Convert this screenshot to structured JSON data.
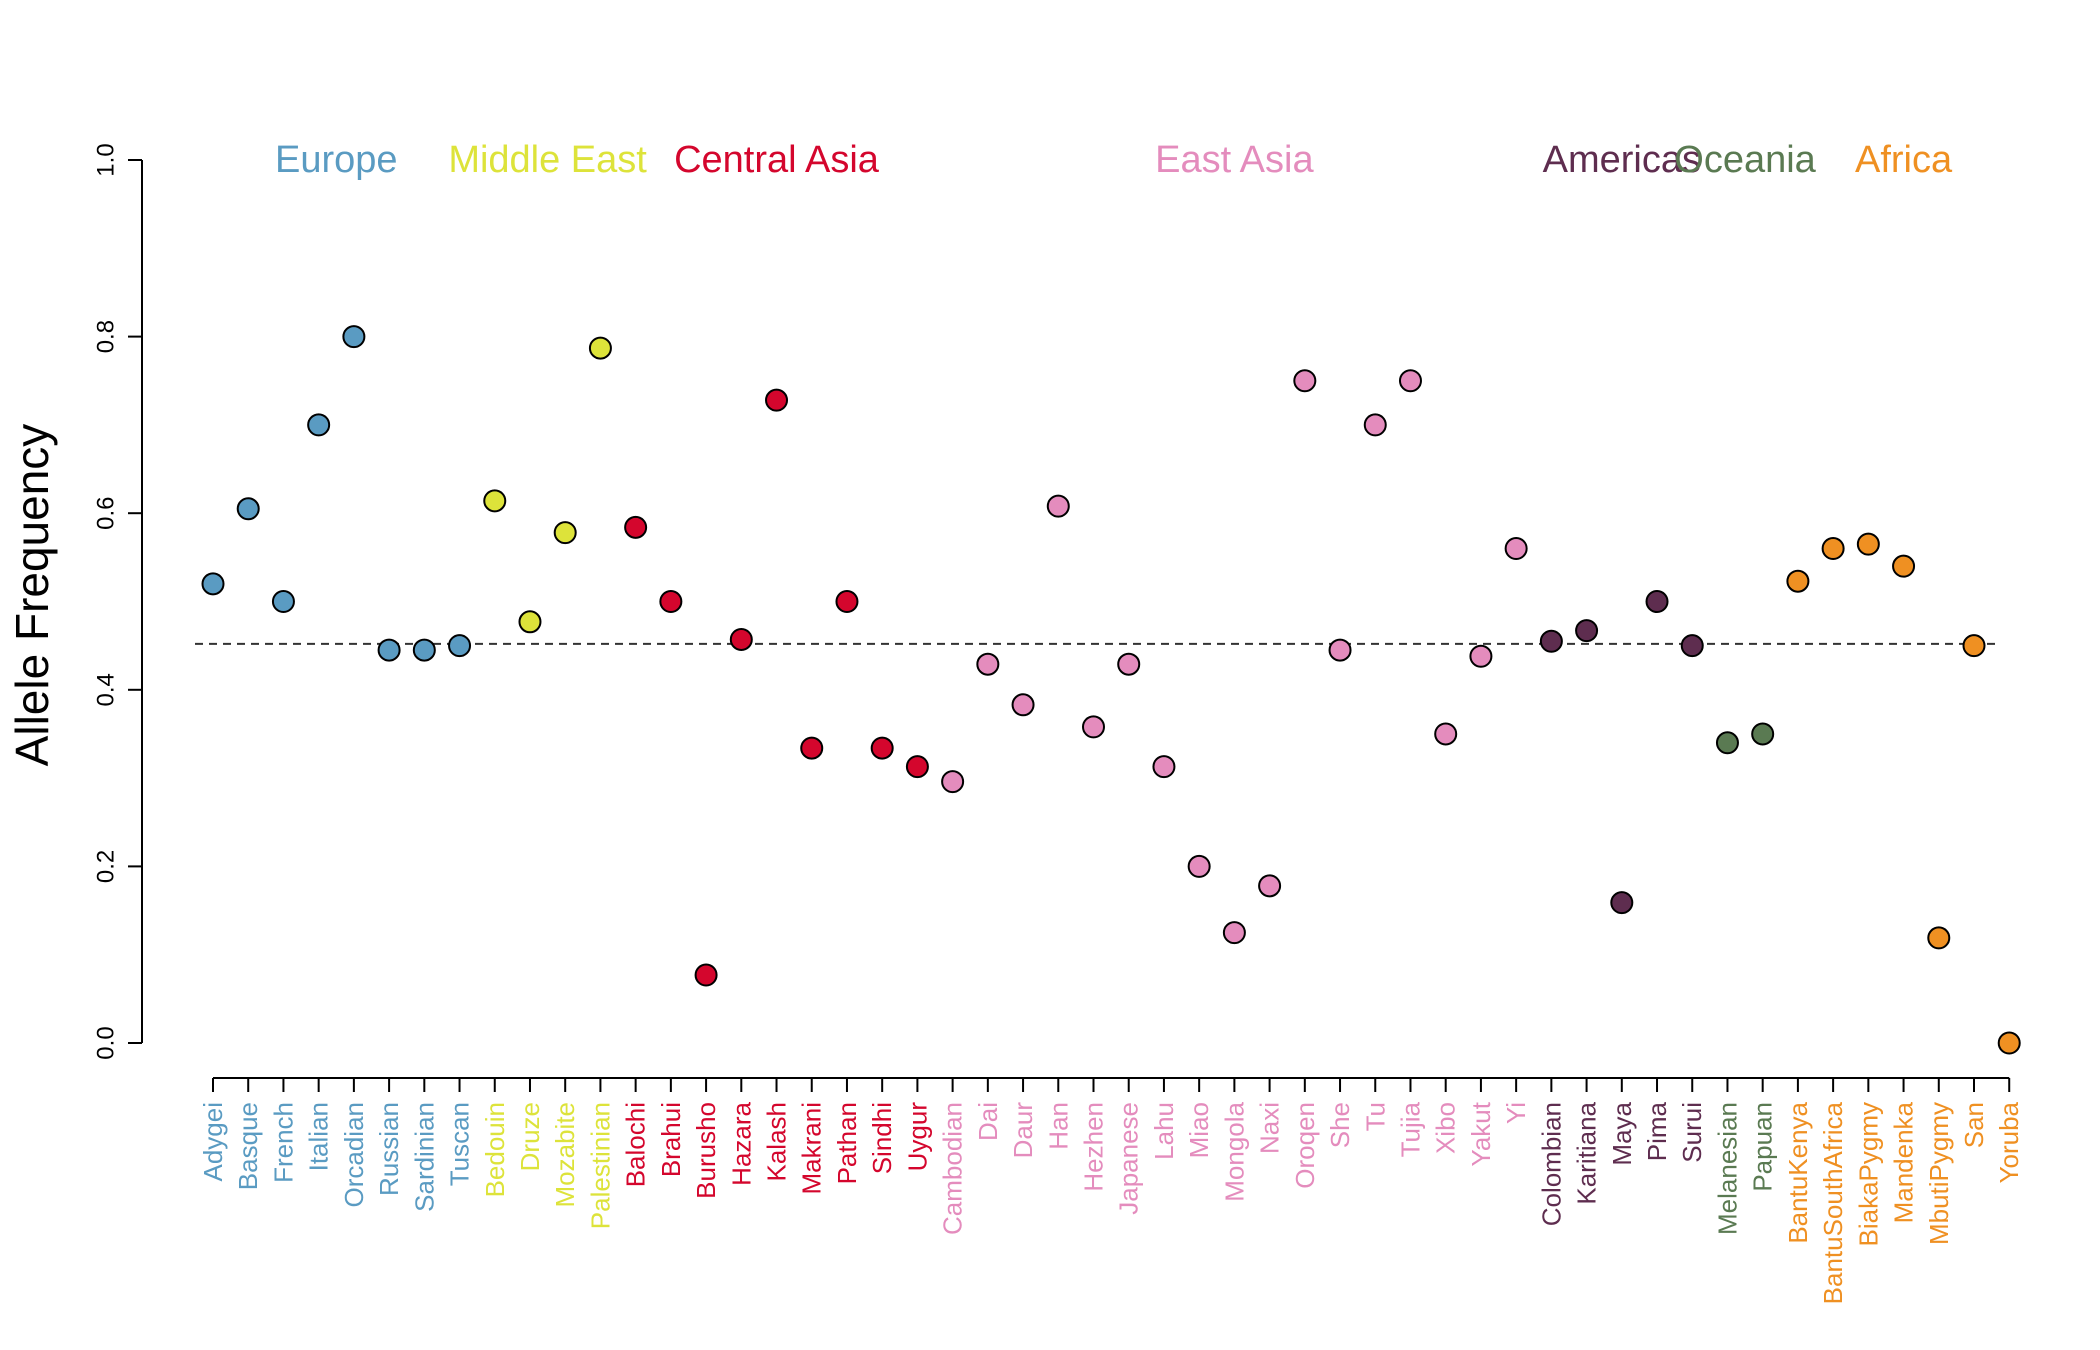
{
  "chart_data": {
    "type": "scatter",
    "title": "",
    "xlabel": "",
    "ylabel": "Allele Frequency",
    "ylim": [
      0,
      1
    ],
    "yticks": [
      "0.0",
      "0.2",
      "0.4",
      "0.6",
      "0.8",
      "1.0"
    ],
    "reference_line": {
      "y": 0.452,
      "style": "dashed"
    },
    "grid": false,
    "regions": [
      {
        "name": "Europe",
        "color": "#5a9bc2"
      },
      {
        "name": "Middle East",
        "color": "#dde33a"
      },
      {
        "name": "Central Asia",
        "color": "#d4062d"
      },
      {
        "name": "East Asia",
        "color": "#e48cbd"
      },
      {
        "name": "Americas",
        "color": "#5e2d4f"
      },
      {
        "name": "Oceania",
        "color": "#5a7a52"
      },
      {
        "name": "Africa",
        "color": "#ef9022"
      }
    ],
    "points": [
      {
        "label": "Adygei",
        "region": 0,
        "y": 0.52
      },
      {
        "label": "Basque",
        "region": 0,
        "y": 0.605
      },
      {
        "label": "French",
        "region": 0,
        "y": 0.5
      },
      {
        "label": "Italian",
        "region": 0,
        "y": 0.7
      },
      {
        "label": "Orcadian",
        "region": 0,
        "y": 0.8
      },
      {
        "label": "Russian",
        "region": 0,
        "y": 0.445
      },
      {
        "label": "Sardinian",
        "region": 0,
        "y": 0.445
      },
      {
        "label": "Tuscan",
        "region": 0,
        "y": 0.45
      },
      {
        "label": "Bedouin",
        "region": 1,
        "y": 0.614
      },
      {
        "label": "Druze",
        "region": 1,
        "y": 0.477
      },
      {
        "label": "Mozabite",
        "region": 1,
        "y": 0.578
      },
      {
        "label": "Palestinian",
        "region": 1,
        "y": 0.787
      },
      {
        "label": "Balochi",
        "region": 2,
        "y": 0.584
      },
      {
        "label": "Brahui",
        "region": 2,
        "y": 0.5
      },
      {
        "label": "Burusho",
        "region": 2,
        "y": 0.077
      },
      {
        "label": "Hazara",
        "region": 2,
        "y": 0.457
      },
      {
        "label": "Kalash",
        "region": 2,
        "y": 0.728
      },
      {
        "label": "Makrani",
        "region": 2,
        "y": 0.334
      },
      {
        "label": "Pathan",
        "region": 2,
        "y": 0.5
      },
      {
        "label": "Sindhi",
        "region": 2,
        "y": 0.334
      },
      {
        "label": "Uygur",
        "region": 2,
        "y": 0.313
      },
      {
        "label": "Cambodian",
        "region": 3,
        "y": 0.296
      },
      {
        "label": "Dai",
        "region": 3,
        "y": 0.429
      },
      {
        "label": "Daur",
        "region": 3,
        "y": 0.383
      },
      {
        "label": "Han",
        "region": 3,
        "y": 0.608
      },
      {
        "label": "Hezhen",
        "region": 3,
        "y": 0.358
      },
      {
        "label": "Japanese",
        "region": 3,
        "y": 0.429
      },
      {
        "label": "Lahu",
        "region": 3,
        "y": 0.313
      },
      {
        "label": "Miao",
        "region": 3,
        "y": 0.2
      },
      {
        "label": "Mongola",
        "region": 3,
        "y": 0.125
      },
      {
        "label": "Naxi",
        "region": 3,
        "y": 0.178
      },
      {
        "label": "Oroqen",
        "region": 3,
        "y": 0.75
      },
      {
        "label": "She",
        "region": 3,
        "y": 0.445
      },
      {
        "label": "Tu",
        "region": 3,
        "y": 0.7
      },
      {
        "label": "Tujia",
        "region": 3,
        "y": 0.75
      },
      {
        "label": "Xibo",
        "region": 3,
        "y": 0.35
      },
      {
        "label": "Yakut",
        "region": 3,
        "y": 0.438
      },
      {
        "label": "Yi",
        "region": 3,
        "y": 0.56
      },
      {
        "label": "Colombian",
        "region": 4,
        "y": 0.455
      },
      {
        "label": "Karitiana",
        "region": 4,
        "y": 0.467
      },
      {
        "label": "Maya",
        "region": 4,
        "y": 0.159
      },
      {
        "label": "Pima",
        "region": 4,
        "y": 0.5
      },
      {
        "label": "Surui",
        "region": 4,
        "y": 0.45
      },
      {
        "label": "Melanesian",
        "region": 5,
        "y": 0.34
      },
      {
        "label": "Papuan",
        "region": 5,
        "y": 0.35
      },
      {
        "label": "BantuKenya",
        "region": 6,
        "y": 0.523
      },
      {
        "label": "BantuSouthAfrica",
        "region": 6,
        "y": 0.56
      },
      {
        "label": "BiakaPygmy",
        "region": 6,
        "y": 0.565
      },
      {
        "label": "Mandenka",
        "region": 6,
        "y": 0.54
      },
      {
        "label": "MbutiPygmy",
        "region": 6,
        "y": 0.119
      },
      {
        "label": "San",
        "region": 6,
        "y": 0.45
      },
      {
        "label": "Yoruba",
        "region": 6,
        "y": 0.0
      }
    ]
  }
}
